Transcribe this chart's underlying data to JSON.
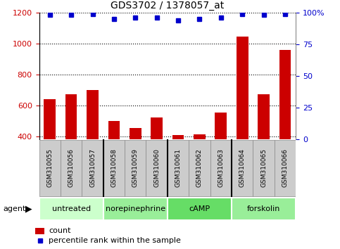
{
  "title": "GDS3702 / 1378057_at",
  "samples": [
    "GSM310055",
    "GSM310056",
    "GSM310057",
    "GSM310058",
    "GSM310059",
    "GSM310060",
    "GSM310061",
    "GSM310062",
    "GSM310063",
    "GSM310064",
    "GSM310065",
    "GSM310066"
  ],
  "counts": [
    640,
    670,
    700,
    497,
    455,
    520,
    410,
    415,
    553,
    1045,
    670,
    960
  ],
  "percentiles": [
    98,
    98,
    99,
    95,
    96,
    96,
    94,
    95,
    96,
    99,
    98,
    99
  ],
  "bar_color": "#cc0000",
  "dot_color": "#0000cc",
  "ylim_left": [
    380,
    1200
  ],
  "ylim_right": [
    0,
    100
  ],
  "yticks_left": [
    400,
    600,
    800,
    1000,
    1200
  ],
  "yticks_right": [
    0,
    25,
    50,
    75,
    100
  ],
  "groups": [
    {
      "label": "untreated",
      "start": 0,
      "end": 3,
      "color": "#ccffcc"
    },
    {
      "label": "norepinephrine",
      "start": 3,
      "end": 6,
      "color": "#99ee99"
    },
    {
      "label": "cAMP",
      "start": 6,
      "end": 9,
      "color": "#66dd66"
    },
    {
      "label": "forskolin",
      "start": 9,
      "end": 12,
      "color": "#99ee99"
    }
  ],
  "group_colors": [
    "#ccffcc",
    "#99ee99",
    "#66dd66",
    "#99ee99"
  ],
  "legend_count_label": "count",
  "legend_pct_label": "percentile rank within the sample",
  "agent_label": "agent",
  "bg_color": "#ffffff",
  "tick_label_color_left": "#cc0000",
  "tick_label_color_right": "#0000cc",
  "sample_box_color": "#cccccc",
  "sample_box_edge": "#888888"
}
